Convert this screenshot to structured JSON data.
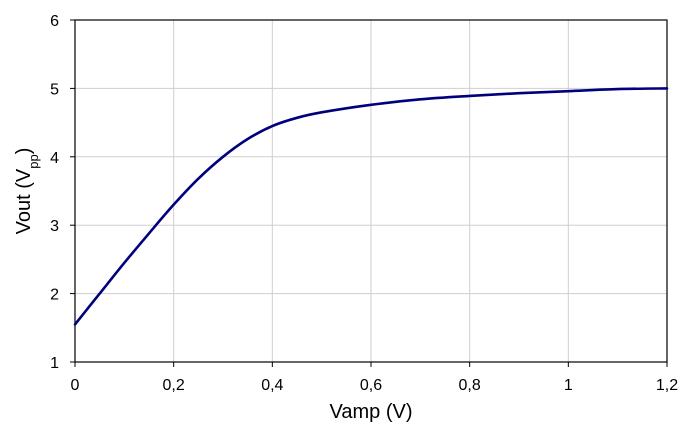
{
  "chart_data": {
    "type": "line",
    "xlabel": "Vamp (V)",
    "ylabel": {
      "main": "Vout (V",
      "sub": "pp",
      "close": ")"
    },
    "xlim": [
      0,
      1.2
    ],
    "ylim": [
      1,
      6
    ],
    "xticks": [
      "0",
      "0,2",
      "0,4",
      "0,6",
      "0,8",
      "1",
      "1,2"
    ],
    "yticks": [
      "1",
      "2",
      "3",
      "4",
      "5",
      "6"
    ],
    "grid": true,
    "legend": "none",
    "series": [
      {
        "color": "#00007f",
        "x": [
          0,
          0.05,
          0.1,
          0.15,
          0.2,
          0.25,
          0.3,
          0.35,
          0.4,
          0.45,
          0.5,
          0.6,
          0.7,
          0.8,
          0.9,
          1.0,
          1.1,
          1.2
        ],
        "y": [
          1.55,
          2.0,
          2.45,
          2.88,
          3.3,
          3.68,
          4.0,
          4.26,
          4.45,
          4.57,
          4.65,
          4.76,
          4.84,
          4.89,
          4.93,
          4.96,
          4.99,
          5.0
        ]
      }
    ]
  }
}
